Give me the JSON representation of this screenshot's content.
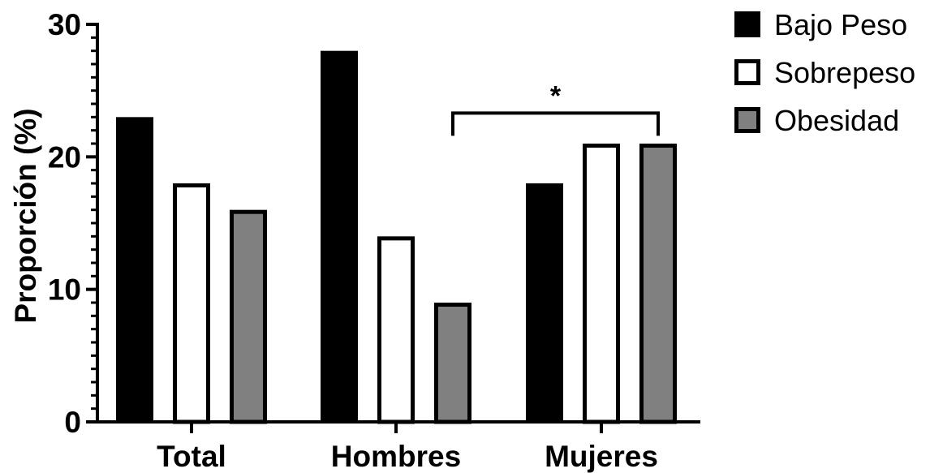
{
  "chart_data": {
    "type": "bar",
    "title": "",
    "xlabel": "",
    "ylabel": "Proporción (%)",
    "ylim": [
      0,
      30
    ],
    "yticks": [
      0,
      10,
      20,
      30
    ],
    "y_minor_step": 1,
    "grid": false,
    "legend_position": "right",
    "categories": [
      "Total",
      "Hombres",
      "Mujeres"
    ],
    "series": [
      {
        "name": "Bajo Peso",
        "values": [
          23,
          28,
          18
        ],
        "color": "#000000",
        "style": "solid"
      },
      {
        "name": "Sobrepeso",
        "values": [
          18,
          14,
          21
        ],
        "color": "#ffffff",
        "style": "outlined"
      },
      {
        "name": "Obesidad",
        "values": [
          16,
          9,
          21
        ],
        "color": "#808080",
        "style": "outlined"
      }
    ],
    "annotations": [
      {
        "text": "*",
        "type": "significance-bracket",
        "from": {
          "category": "Hombres",
          "series": "Obesidad"
        },
        "to": {
          "category": "Mujeres",
          "series": "Obesidad"
        },
        "y": 23.3
      }
    ]
  }
}
